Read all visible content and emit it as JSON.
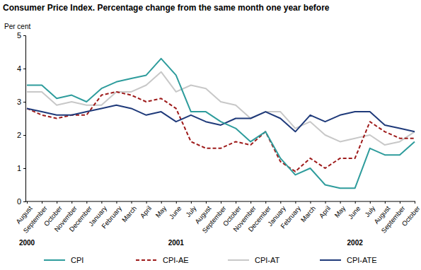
{
  "chart_data": {
    "type": "line",
    "title": "Consumer Price Index. Percentage change from the same month one year before",
    "y_label": "Per cent",
    "categories": [
      "August",
      "September",
      "October",
      "November",
      "December",
      "January",
      "February",
      "March",
      "April",
      "May",
      "June",
      "July",
      "August",
      "September",
      "October",
      "November",
      "December",
      "January",
      "February",
      "March",
      "April",
      "May",
      "June",
      "July",
      "August",
      "September",
      "October"
    ],
    "annotations": [
      {
        "text": "2000",
        "category": 0
      },
      {
        "text": "2001",
        "category": 10
      },
      {
        "text": "2002",
        "category": 22
      }
    ],
    "series": [
      {
        "name": "CPI",
        "color": "#2e9c9c",
        "line_style": "solid",
        "values": [
          3.5,
          3.5,
          3.1,
          3.2,
          3.0,
          3.4,
          3.6,
          3.7,
          3.8,
          4.3,
          3.8,
          2.7,
          2.7,
          2.4,
          2.2,
          1.8,
          2.1,
          1.3,
          0.8,
          1.0,
          0.5,
          0.4,
          0.4,
          1.6,
          1.4,
          1.4,
          1.8
        ]
      },
      {
        "name": "CPI-AE",
        "color": "#9e1b1b",
        "line_style": "dashed",
        "values": [
          2.8,
          2.6,
          2.5,
          2.6,
          2.6,
          3.2,
          3.3,
          3.2,
          3.0,
          3.1,
          2.8,
          1.8,
          1.6,
          1.6,
          1.8,
          1.7,
          2.1,
          1.2,
          0.9,
          1.3,
          1.0,
          1.3,
          1.3,
          2.4,
          2.1,
          1.9,
          1.9
        ]
      },
      {
        "name": "CPI-AT",
        "color": "#c8c8c8",
        "line_style": "solid",
        "values": [
          3.3,
          3.3,
          2.9,
          3.0,
          2.9,
          2.9,
          3.3,
          3.3,
          3.5,
          3.9,
          3.3,
          3.5,
          3.4,
          3.0,
          2.9,
          2.5,
          2.7,
          2.7,
          2.2,
          2.4,
          2.0,
          1.8,
          1.9,
          2.0,
          1.7,
          1.8,
          2.1
        ]
      },
      {
        "name": "CPI-ATE",
        "color": "#1f3a7a",
        "line_style": "solid",
        "values": [
          2.8,
          2.7,
          2.6,
          2.6,
          2.7,
          2.8,
          2.9,
          2.8,
          2.6,
          2.7,
          2.4,
          2.6,
          2.4,
          2.3,
          2.5,
          2.5,
          2.7,
          2.5,
          2.1,
          2.6,
          2.4,
          2.6,
          2.7,
          2.7,
          2.3,
          2.2,
          2.1
        ]
      }
    ],
    "ylim": [
      0,
      5
    ],
    "yticks": [
      0,
      1,
      2,
      3,
      4,
      5
    ],
    "grid": false,
    "legend": "bottom"
  }
}
